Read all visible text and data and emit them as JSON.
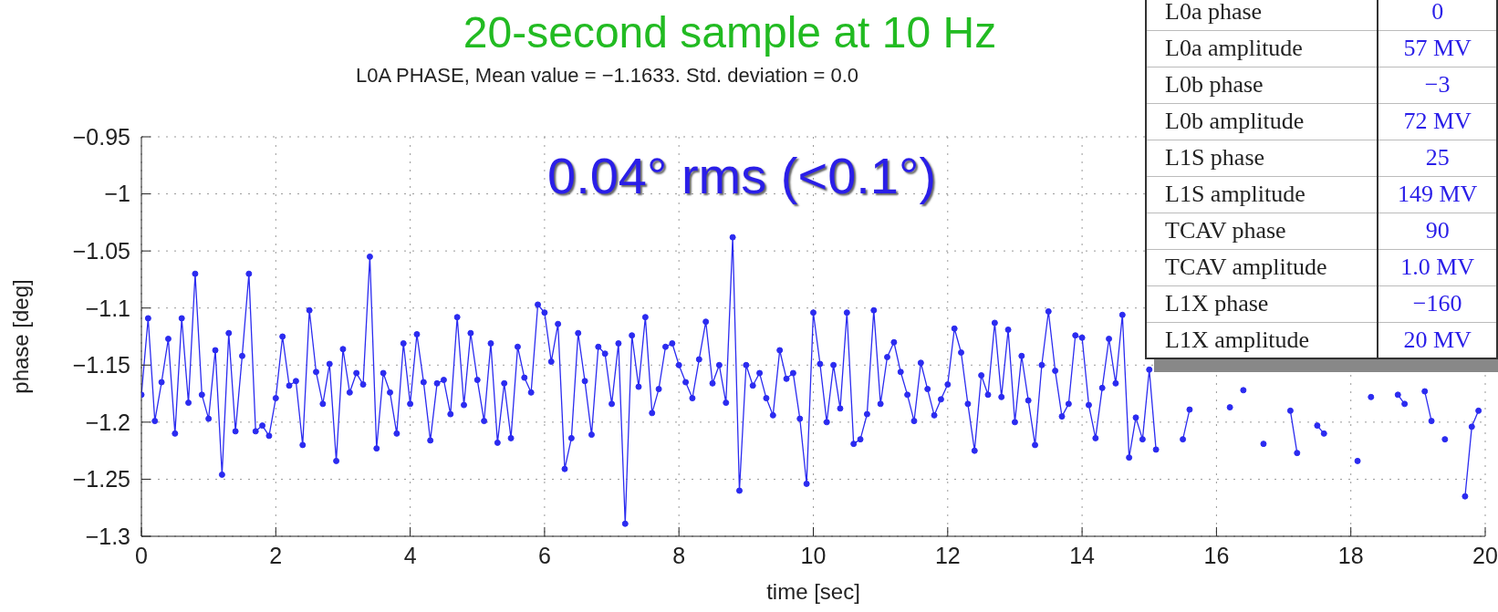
{
  "chart_data": {
    "type": "line",
    "title": "20-second sample at 10 Hz",
    "subtitle": "L0A PHASE, Mean value = −1.1633. Std. deviation = 0.0",
    "xlabel": "time [sec]",
    "ylabel": "phase [deg]",
    "annotations": [
      "0.04° rms (<0.1°)",
      "L0a phase",
      "0",
      "L0a amplitude",
      "57 MV",
      "L0b phase",
      "−3",
      "L0b amplitude",
      "72 MV",
      "L1S phase",
      "25",
      "L1S amplitude",
      "149 MV",
      "TCAV phase",
      "90",
      "TCAV amplitude",
      "1.0 MV",
      "L1X phase",
      "−160",
      "L1X amplitude",
      "20 MV"
    ],
    "x": [
      0,
      0.1,
      0.2,
      0.3,
      0.4,
      0.5,
      0.6,
      0.7,
      0.8,
      0.9,
      1,
      1.1,
      1.2,
      1.3,
      1.4,
      1.5,
      1.6,
      1.7,
      1.8,
      1.9,
      2,
      2.1,
      2.2,
      2.3,
      2.4,
      2.5,
      2.6,
      2.7,
      2.8,
      2.9,
      3,
      3.1,
      3.2,
      3.3,
      3.4,
      3.5,
      3.6,
      3.7,
      3.8,
      3.9,
      4,
      4.1,
      4.2,
      4.3,
      4.4,
      4.5,
      4.6,
      4.7,
      4.8,
      4.9,
      5,
      5.1,
      5.2,
      5.3,
      5.4,
      5.5,
      5.6,
      5.7,
      5.8,
      5.9,
      6,
      6.1,
      6.2,
      6.3,
      6.4,
      6.5,
      6.6,
      6.7,
      6.8,
      6.9,
      7,
      7.1,
      7.2,
      7.3,
      7.4,
      7.5,
      7.6,
      7.7,
      7.8,
      7.9,
      8,
      8.1,
      8.2,
      8.3,
      8.4,
      8.5,
      8.6,
      8.7,
      8.8,
      8.9,
      9,
      9.1,
      9.2,
      9.3,
      9.4,
      9.5,
      9.6,
      9.7,
      9.8,
      9.9,
      10,
      10.1,
      10.2,
      10.3,
      10.4,
      10.5,
      10.6,
      10.7,
      10.8,
      10.9,
      11,
      11.1,
      11.2,
      11.3,
      11.4,
      11.5,
      11.6,
      11.7,
      11.8,
      11.9,
      12,
      12.1,
      12.2,
      12.3,
      12.4,
      12.5,
      12.6,
      12.7,
      12.8,
      12.9,
      13,
      13.1,
      13.2,
      13.3,
      13.4,
      13.5,
      13.6,
      13.7,
      13.8,
      13.9,
      14,
      14.1,
      14.2,
      14.3,
      14.4,
      14.5,
      14.6,
      14.7,
      14.8,
      14.9,
      15,
      15.1,
      15.2,
      15.3,
      15.4,
      15.5,
      15.6,
      15.7,
      15.8,
      15.9,
      16,
      16.1,
      16.2,
      16.3,
      16.4,
      16.5,
      16.6,
      16.7,
      16.8,
      16.9,
      17,
      17.1,
      17.2,
      17.3,
      17.4,
      17.5,
      17.6,
      17.7,
      17.8,
      17.9,
      18,
      18.1,
      18.2,
      18.3,
      18.4,
      18.5,
      18.6,
      18.7,
      18.8,
      18.9,
      19,
      19.1,
      19.2,
      19.3,
      19.4,
      19.5,
      19.6,
      19.7,
      19.8,
      19.9
    ],
    "series": [
      {
        "color": "#2b2bf0",
        "values": [
          -1.176,
          -1.109,
          -1.199,
          -1.165,
          -1.127,
          -1.21,
          -1.109,
          -1.183,
          -1.07,
          -1.176,
          -1.197,
          -1.137,
          -1.246,
          -1.122,
          -1.208,
          -1.142,
          -1.07,
          -1.208,
          -1.203,
          -1.212,
          -1.179,
          -1.125,
          -1.168,
          -1.164,
          -1.22,
          -1.102,
          -1.156,
          -1.184,
          -1.149,
          -1.234,
          -1.136,
          -1.174,
          -1.157,
          -1.167,
          -1.055,
          -1.223,
          -1.157,
          -1.174,
          -1.21,
          -1.131,
          -1.184,
          -1.123,
          -1.165,
          -1.216,
          -1.166,
          -1.163,
          -1.193,
          -1.108,
          -1.185,
          -1.122,
          -1.163,
          -1.199,
          -1.131,
          -1.218,
          -1.166,
          -1.214,
          -1.134,
          -1.161,
          -1.174,
          -1.097,
          -1.104,
          -1.147,
          -1.114,
          -1.241,
          -1.214,
          -1.122,
          -1.164,
          -1.211,
          -1.134,
          -1.14,
          -1.184,
          -1.131,
          -1.289,
          -1.124,
          -1.169,
          -1.108,
          -1.192,
          -1.171,
          -1.134,
          -1.131,
          -1.15,
          -1.165,
          -1.179,
          -1.145,
          -1.112,
          -1.166,
          -1.15,
          -1.183,
          -1.038,
          -1.26,
          -1.15,
          -1.168,
          -1.157,
          -1.179,
          -1.194,
          -1.137,
          -1.162,
          -1.157,
          -1.197,
          -1.254,
          -1.104,
          -1.149,
          -1.2,
          -1.15,
          -1.188,
          -1.104,
          -1.219,
          -1.215,
          -1.193,
          -1.102,
          -1.184,
          -1.143,
          -1.13,
          -1.156,
          -1.176,
          -1.199,
          -1.148,
          -1.171,
          -1.194,
          -1.18,
          -1.167,
          -1.118,
          -1.139,
          -1.184,
          -1.225,
          -1.159,
          -1.176,
          -1.113,
          -1.178,
          -1.119,
          -1.2,
          -1.142,
          -1.181,
          -1.22,
          -1.15,
          -1.103,
          -1.155,
          -1.195,
          -1.184,
          -1.124,
          -1.126,
          -1.185,
          -1.214,
          -1.17,
          -1.127,
          -1.166,
          -1.106,
          -1.231,
          -1.196,
          -1.215,
          -1.154,
          -1.224,
          null,
          null,
          null,
          -1.215,
          -1.189,
          null,
          null,
          null,
          null,
          null,
          -1.187,
          null,
          -1.172,
          null,
          null,
          -1.219,
          null,
          null,
          null,
          -1.19,
          -1.227,
          null,
          null,
          -1.203,
          -1.21,
          null,
          null,
          null,
          null,
          -1.234,
          null,
          -1.178,
          null,
          null,
          null,
          -1.176,
          -1.184,
          null,
          null,
          -1.173,
          -1.199,
          null,
          -1.215,
          null,
          null,
          -1.265,
          -1.204,
          -1.19
        ]
      }
    ],
    "xlim": [
      0,
      20
    ],
    "xticks": [
      0,
      2,
      4,
      6,
      8,
      10,
      12,
      14,
      16,
      18,
      20
    ],
    "ylim": [
      -1.3,
      -0.95
    ],
    "yticks": [
      {
        "value": -0.95,
        "label": "−0.95"
      },
      {
        "value": -1,
        "label": "−1"
      },
      {
        "value": -1.05,
        "label": "−1.05"
      },
      {
        "value": -1.1,
        "label": "−1.1"
      },
      {
        "value": -1.15,
        "label": "−1.15"
      },
      {
        "value": -1.2,
        "label": "−1.2"
      },
      {
        "value": -1.25,
        "label": "−1.25"
      },
      {
        "value": -1.3,
        "label": "−1.3"
      }
    ],
    "grid": true,
    "marker": "circle",
    "line_style": "solid"
  }
}
